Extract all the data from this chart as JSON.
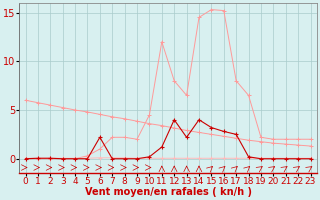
{
  "background_color": "#d8f0f0",
  "grid_color": "#aacccc",
  "xlabel": "Vent moyen/en rafales ( kn/h )",
  "xlabel_color": "#cc0000",
  "ylabel_yticks": [
    0,
    5,
    10,
    15
  ],
  "xlim": [
    -0.5,
    23.5
  ],
  "ylim": [
    -1.5,
    16
  ],
  "x": [
    0,
    1,
    2,
    3,
    4,
    5,
    6,
    7,
    8,
    9,
    10,
    11,
    12,
    13,
    14,
    15,
    16,
    17,
    18,
    19,
    20,
    21,
    22,
    23
  ],
  "line3_y": [
    0.0,
    0.0,
    0.0,
    0.0,
    0.0,
    0.3,
    1.0,
    2.2,
    2.2,
    2.0,
    4.5,
    12.0,
    8.0,
    6.5,
    14.5,
    15.3,
    15.2,
    8.0,
    6.5,
    2.2,
    2.0,
    2.0,
    2.0,
    2.0
  ],
  "line3_color": "#ff9999",
  "line4_y": [
    6.0,
    5.75,
    5.5,
    5.25,
    5.0,
    4.8,
    4.55,
    4.3,
    4.1,
    3.85,
    3.6,
    3.4,
    3.15,
    2.9,
    2.7,
    2.5,
    2.3,
    2.1,
    1.9,
    1.75,
    1.6,
    1.5,
    1.4,
    1.3
  ],
  "line4_color": "#ff9999",
  "line1_y": [
    0.0,
    0.05,
    0.05,
    0.0,
    0.0,
    0.0,
    2.2,
    0.0,
    0.0,
    0.0,
    0.2,
    1.2,
    4.0,
    2.2,
    4.0,
    3.2,
    2.8,
    2.5,
    0.2,
    0.0,
    0.0,
    0.0,
    0.0,
    0.0
  ],
  "line1_color": "#cc0000",
  "line2_y": [
    0.05,
    0.05,
    0.05,
    0.05,
    0.05,
    0.05,
    0.1,
    0.1,
    0.1,
    0.05,
    0.05,
    0.05,
    0.05,
    0.05,
    0.05,
    0.05,
    0.05,
    0.05,
    0.05,
    0.05,
    0.05,
    0.05,
    0.05,
    0.05
  ],
  "line2_color": "#ffbbbb",
  "tick_label_color": "#cc0000",
  "tick_label_fontsize": 6.5,
  "ytick_fontsize": 7
}
